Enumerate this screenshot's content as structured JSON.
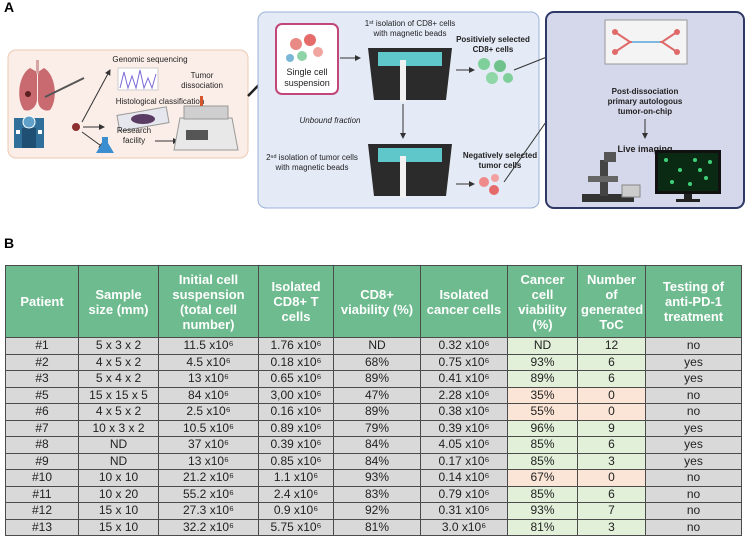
{
  "panel_a": {
    "label": "A",
    "genomic": "Genomic sequencing",
    "histology": "Histological classification",
    "research": [
      "Research",
      "facility"
    ],
    "dissociation": [
      "Tumor",
      "dissociation"
    ],
    "suspension": [
      "Single cell",
      "suspension"
    ],
    "first_isolation": [
      "1ˢᵗ isolation of CD8+ cells",
      "with magnetic beads"
    ],
    "positive": [
      "Positiviely selected",
      "CD8+ cells"
    ],
    "unbound": "Unbound fraction",
    "second_isolation": [
      "2ⁿᵈ isolation of tumor cells",
      "with magnetic beads"
    ],
    "negative": [
      "Negatively selected",
      "tumor cells"
    ],
    "chip": [
      "Post-dissociation",
      "primary autologous",
      "tumor-on-chip"
    ],
    "imaging": "Live imaging"
  },
  "panel_b": {
    "label": "B",
    "table": {
      "header": [
        "Patient",
        "Sample size (mm)",
        "Initial cell suspension (total cell number)",
        "Isolated CD8+ T cells",
        "CD8+ viability (%)",
        "Isolated cancer cells",
        "Cancer cell viability (%)",
        "Number of generated ToC",
        "Testing of anti-PD-1 treatment"
      ],
      "rows": [
        [
          "#1",
          "5 x 3 x 2",
          "11.5 x10⁶",
          "1.76 x10⁶",
          "ND",
          "0.32 x10⁶",
          "ND",
          "12",
          "no"
        ],
        [
          "#2",
          "4 x 5 x 2",
          "4.5 x10⁶",
          "0.18 x10⁶",
          "68%",
          "0.75 x10⁶",
          "93%",
          "6",
          "yes"
        ],
        [
          "#3",
          "5 x 4 x 2",
          "13 x10⁶",
          "0.65 x10⁶",
          "89%",
          "0.41 x10⁶",
          "89%",
          "6",
          "yes"
        ],
        [
          "#5",
          "15 x 15 x 5",
          "84 x10⁶",
          "3,00 x10⁶",
          "47%",
          "2.28 x10⁶",
          "35%",
          "0",
          "no"
        ],
        [
          "#6",
          "4 x 5 x 2",
          "2.5 x10⁶",
          "0.16 x10⁶",
          "89%",
          "0.38 x10⁶",
          "55%",
          "0",
          "no"
        ],
        [
          "#7",
          "10 x 3 x 2",
          "10.5 x10⁶",
          "0.89 x10⁶",
          "79%",
          "0.39 x10⁶",
          "96%",
          "9",
          "yes"
        ],
        [
          "#8",
          "ND",
          "37 x10⁶",
          "0.39 x10⁶",
          "84%",
          "4.05 x10⁶",
          "85%",
          "6",
          "yes"
        ],
        [
          "#9",
          "ND",
          "13 x10⁶",
          "0.85 x10⁶",
          "84%",
          "0.17 x10⁶",
          "85%",
          "3",
          "yes"
        ],
        [
          "#10",
          "10 x 10",
          "21.2 x10⁶",
          "1.1 x10⁶",
          "93%",
          "0.14 x10⁶",
          "67%",
          "0",
          "no"
        ],
        [
          "#11",
          "10 x 20",
          "55.2 x10⁶",
          "2.4 x10⁶",
          "83%",
          "0.79 x10⁶",
          "85%",
          "6",
          "no"
        ],
        [
          "#12",
          "15 x 10",
          "27.3 x10⁶",
          "0.9 x10⁶",
          "92%",
          "0.31 x10⁶",
          "93%",
          "7",
          "no"
        ],
        [
          "#13",
          "15 x 10",
          "32.2 x10⁶",
          "5.75 x10⁶",
          "81%",
          "3.0 x10⁶",
          "81%",
          "3",
          "no"
        ]
      ]
    }
  }
}
